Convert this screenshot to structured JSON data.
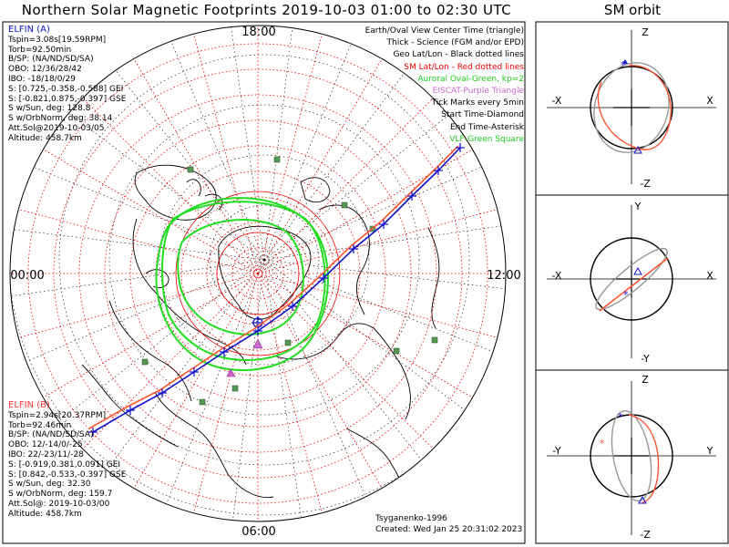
{
  "title": "Northern Solar Magnetic Footprints 2019-10-03 01:00 to 02:30 UTC",
  "sm_title": "SM orbit",
  "mlt_labels": {
    "top": "18:00",
    "left": "00:00",
    "right": "12:00",
    "bottom": "06:00"
  },
  "elfin_a": {
    "header": "ELFIN (A)",
    "lines": [
      "Tspin=3.08s[19.59RPM]",
      "Torb=92.50min",
      "B/SP: (NA/ND/SD/SA)",
      "OBO: 12/36/28/42",
      "IBO: -18/18/0/29",
      "S: [0.725,-0.358,-0.588] GEI",
      "S: [-0.821,0.875,-0.397] GSE",
      "S w/Sun, deg: 128.8",
      "S w/OrbNorm, deg: 38.14",
      "Att.Sol@2019-10-03/05",
      "Altitude: 458.7km"
    ]
  },
  "elfin_b": {
    "header": "ELFIN (B)",
    "lines": [
      "Tspin=2.94s[20.37RPM]",
      "Torb=92.46min",
      "B/SP: (NA/ND/SD/SA)",
      "OBO: 12/-14/0/-25",
      "IBO: 22/-23/11/-28",
      "S: [-0.919,0.381,0.091] GEI",
      "S: [0.842,-0.533,-0.397] GSE",
      "S w/Sun, deg: 32.30",
      "S w/OrbNorm, deg: 159.7",
      "Att.Sol@: 2019-10-03/00",
      "Altitude: 458.7km"
    ]
  },
  "legend": [
    {
      "text": "Earth/Oval View Center Time (triangle)",
      "color": "#000000"
    },
    {
      "text": "Thick - Science (FGM and/or EPD)",
      "color": "#000000"
    },
    {
      "text": "Geo Lat/Lon - Black dotted lines",
      "color": "#000000"
    },
    {
      "text": "SM Lat/Lon - Red dotted lines",
      "color": "#ee0000"
    },
    {
      "text": "Auroral Oval-Green, kp=2",
      "color": "#22cc22"
    },
    {
      "text": "EISCAT-Purple Triangle",
      "color": "#cc66cc"
    },
    {
      "text": "Tick Marks every 5min",
      "color": "#000000"
    },
    {
      "text": "Start Time-Diamond",
      "color": "#000000"
    },
    {
      "text": "End Time-Asterisk",
      "color": "#000000"
    },
    {
      "text": "VLF-Green Square",
      "color": "#22cc22"
    }
  ],
  "credits": [
    "Tsyganenko-1996",
    "Created: Wed Jan 25 20:31:02 2023"
  ],
  "orbit_panels": [
    {
      "top": "Z",
      "bottom": "-Z",
      "left": "-X",
      "right": "X"
    },
    {
      "top": "Y",
      "bottom": "-Y",
      "left": "-X",
      "right": "X"
    },
    {
      "top": "Z",
      "bottom": "-Z",
      "left": "-Y",
      "right": "Y"
    }
  ],
  "colors": {
    "elfin_a": "#1010cc",
    "elfin_b": "#ff5533",
    "oval": "#22dd22",
    "sm_grid": "#ee0000"
  }
}
